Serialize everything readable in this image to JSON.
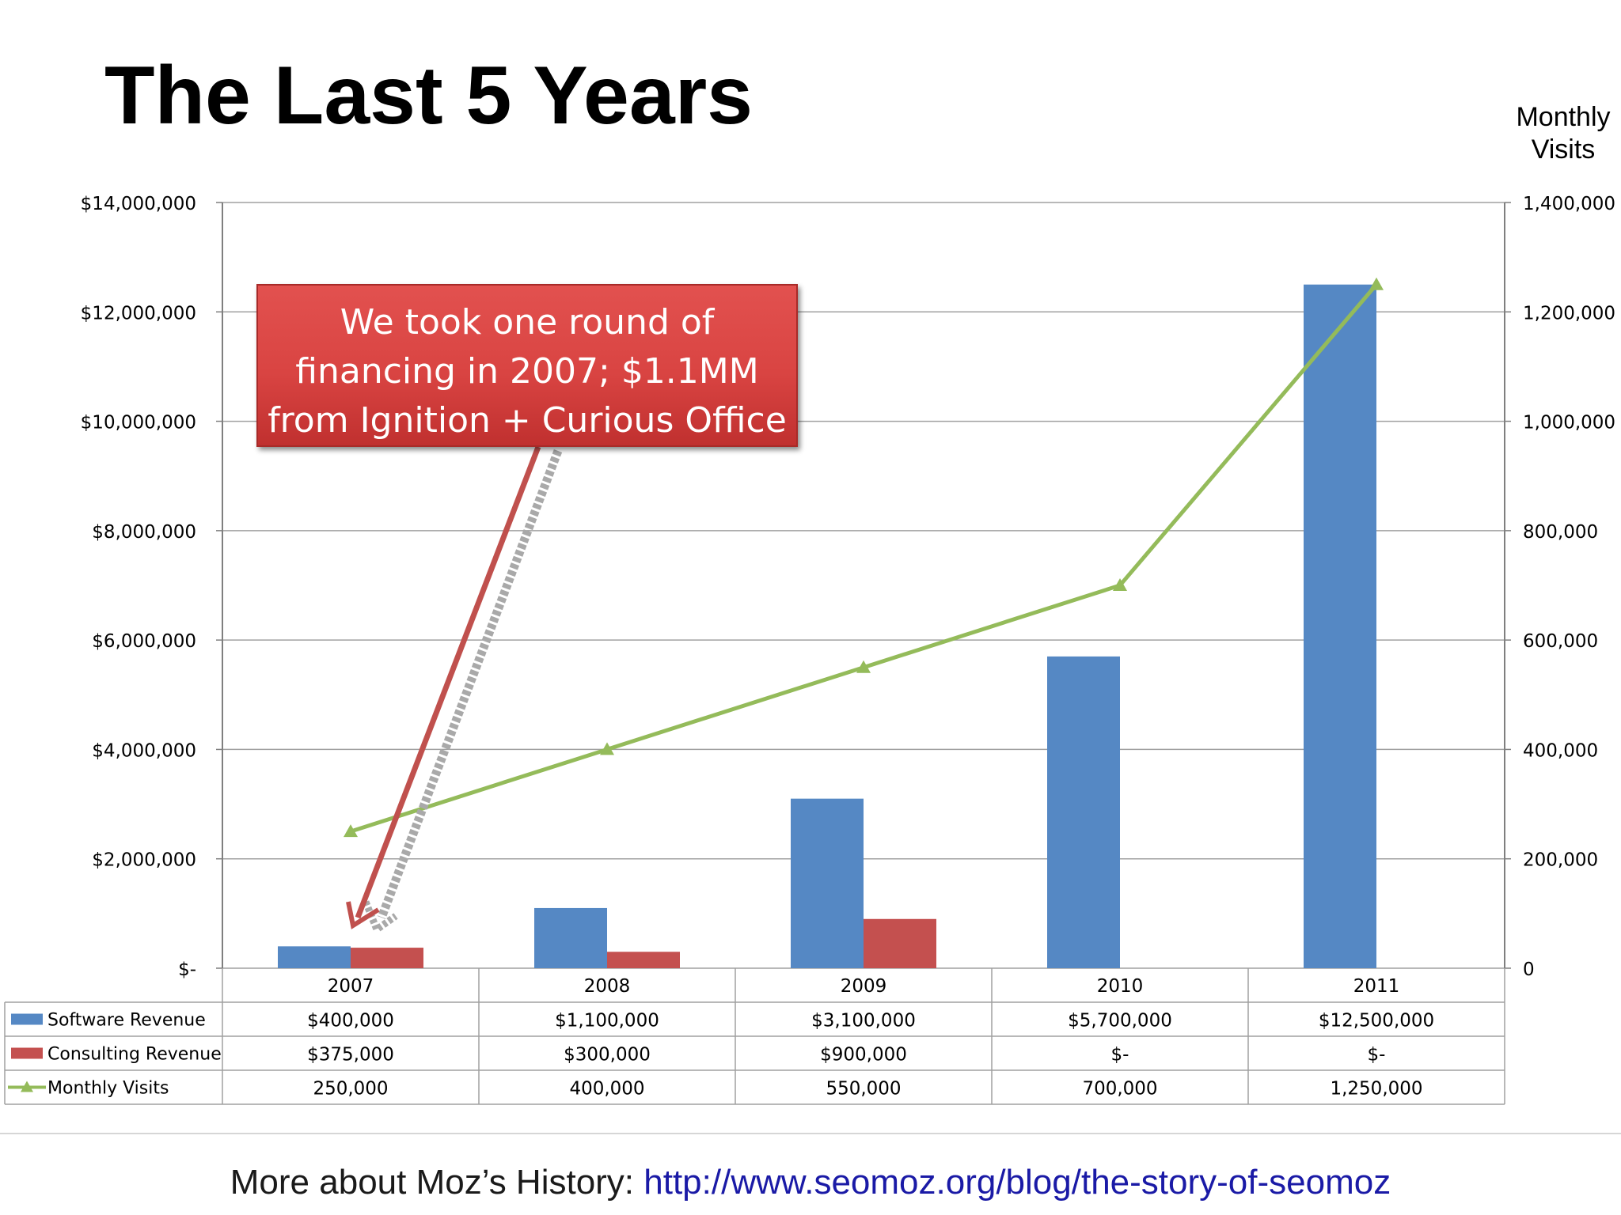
{
  "slide": {
    "title": "The Last 5 Years",
    "right_axis_title": "Monthly Visits",
    "callout": "We took one round of financing in 2007; $1.1MM from Ignition + Curious Office",
    "footer_label": "More about Moz’s History: ",
    "footer_link": "http://www.seomoz.org/blog/the-story-of-seomoz"
  },
  "chart_data": {
    "type": "bar",
    "categories": [
      "2007",
      "2008",
      "2009",
      "2010",
      "2011"
    ],
    "series": [
      {
        "name": "Software Revenue",
        "type": "bar",
        "axis": "left",
        "color": "#5588c4",
        "values": [
          400000,
          1100000,
          3100000,
          5700000,
          12500000
        ],
        "labels": [
          "$400,000",
          "$1,100,000",
          "$3,100,000",
          "$5,700,000",
          "$12,500,000"
        ]
      },
      {
        "name": "Consulting Revenue",
        "type": "bar",
        "axis": "left",
        "color": "#c4504f",
        "values": [
          375000,
          300000,
          900000,
          0,
          0
        ],
        "labels": [
          "$375,000",
          "$300,000",
          "$900,000",
          "$-",
          "$-"
        ]
      },
      {
        "name": "Monthly Visits",
        "type": "line",
        "axis": "right",
        "color": "#94bb5a",
        "values": [
          250000,
          400000,
          550000,
          700000,
          1250000
        ],
        "labels": [
          "250,000",
          "400,000",
          "550,000",
          "700,000",
          "1,250,000"
        ]
      }
    ],
    "y_left": {
      "range": [
        0,
        14000000
      ],
      "ticks": [
        0,
        2000000,
        4000000,
        6000000,
        8000000,
        10000000,
        12000000,
        14000000
      ],
      "tick_labels": [
        "$-",
        "$2,000,000",
        "$4,000,000",
        "$6,000,000",
        "$8,000,000",
        "$10,000,000",
        "$12,000,000",
        "$14,000,000"
      ]
    },
    "y_right": {
      "range": [
        0,
        1400000
      ],
      "ticks": [
        0,
        200000,
        400000,
        600000,
        800000,
        1000000,
        1200000,
        1400000
      ],
      "tick_labels": [
        "0",
        "200,000",
        "400,000",
        "600,000",
        "800,000",
        "1,000,000",
        "1,200,000",
        "1,400,000"
      ]
    },
    "grid": true,
    "legend": "data-table-below"
  }
}
